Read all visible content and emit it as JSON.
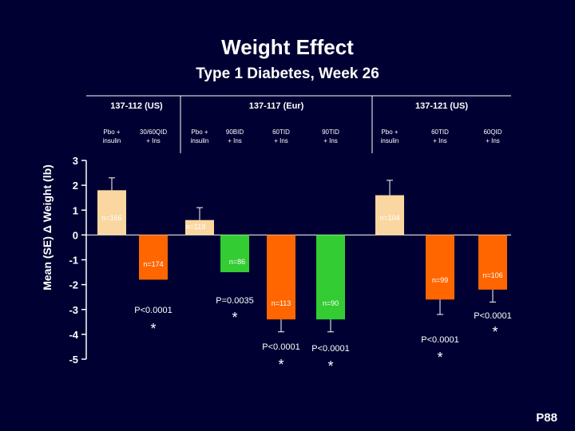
{
  "slide": {
    "title": "Weight Effect",
    "subtitle": "Type 1 Diabetes, Week 26",
    "page_label": "P88"
  },
  "colors": {
    "background": "#000033",
    "placebo": "#fad7a0",
    "pramlintide_30": "#ff6600",
    "pramlintide_90": "#33cc33",
    "axis": "#ffffff"
  },
  "chart_data": {
    "type": "bar",
    "ylabel": "Mean (SE) Δ Weight (lb)",
    "ylim": [
      -5,
      3
    ],
    "yticks": [
      3,
      2,
      1,
      0,
      -1,
      -2,
      -3,
      -4,
      -5
    ],
    "ytick_labels": [
      "3",
      "2",
      "1",
      "0",
      "-1",
      "-2",
      "-3",
      "-4",
      "-5"
    ],
    "studies": [
      {
        "name": "137-112 (US)",
        "bars": [
          0,
          1
        ]
      },
      {
        "name": "137-117 (Eur)",
        "bars": [
          2,
          3,
          4,
          5
        ]
      },
      {
        "name": "137-121 (US)",
        "bars": [
          6,
          7,
          8
        ]
      }
    ],
    "bars": [
      {
        "category": [
          "Pbo +",
          "insulin"
        ],
        "value": 1.8,
        "error": 0.5,
        "color": "placebo",
        "n": "n=166",
        "p": "",
        "star": ""
      },
      {
        "category": [
          "30/60QID",
          "+ Ins"
        ],
        "value": -1.8,
        "error": 0,
        "color": "pramlintide_30",
        "n": "n=174",
        "p": "P<0.0001",
        "star": "*"
      },
      {
        "category": [
          "Pbo +",
          "insulin"
        ],
        "value": 0.6,
        "error": 0.5,
        "color": "placebo",
        "n": "n=119",
        "p": "",
        "star": ""
      },
      {
        "category": [
          "90BID",
          "+ Ins"
        ],
        "value": -1.5,
        "error": 0,
        "color": "pramlintide_90",
        "n": "n=86",
        "p": "P=0.0035",
        "star": "*"
      },
      {
        "category": [
          "60TID",
          "+ Ins"
        ],
        "value": -3.4,
        "error": 0.5,
        "color": "pramlintide_30",
        "n": "n=113",
        "p": "P<0.0001",
        "star": "*"
      },
      {
        "category": [
          "90TID",
          "+ Ins"
        ],
        "value": -3.4,
        "error": 0.5,
        "color": "pramlintide_90",
        "n": "n=90",
        "p": "P<0.0001",
        "star": "*"
      },
      {
        "category": [
          "Pbo +",
          "insulin"
        ],
        "value": 1.6,
        "error": 0.6,
        "color": "placebo",
        "n": "n=104",
        "p": "",
        "star": ""
      },
      {
        "category": [
          "60TID",
          "+ Ins"
        ],
        "value": -2.6,
        "error": 0.6,
        "color": "pramlintide_30",
        "n": "n=99",
        "p": "P<0.0001",
        "star": "*"
      },
      {
        "category": [
          "60QID",
          "+ Ins"
        ],
        "value": -2.2,
        "error": 0.5,
        "color": "pramlintide_30",
        "n": "n=106",
        "p": "P<0.0001",
        "star": "*"
      }
    ]
  }
}
